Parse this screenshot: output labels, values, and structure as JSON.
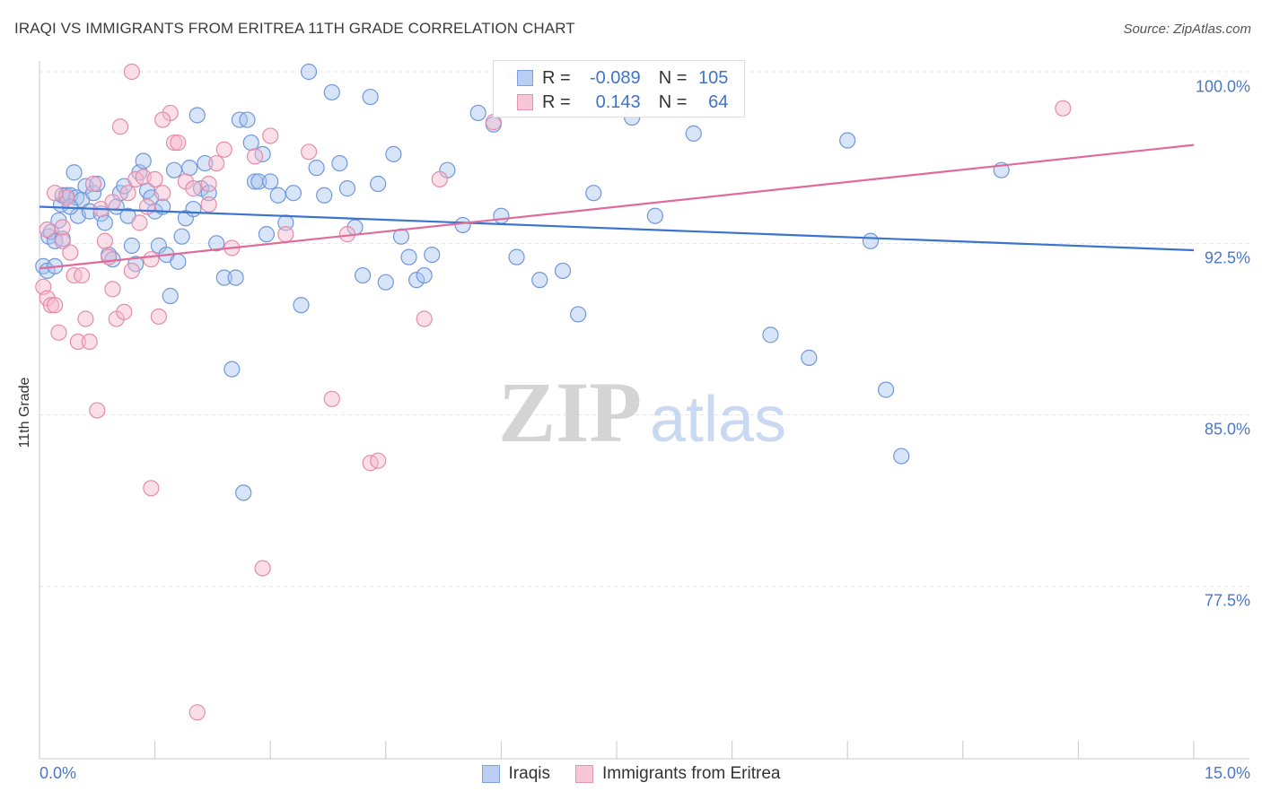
{
  "title": "IRAQI VS IMMIGRANTS FROM ERITREA 11TH GRADE CORRELATION CHART",
  "source": "Source: ZipAtlas.com",
  "watermark": {
    "zip": "ZIP",
    "atlas": "atlas"
  },
  "legend_top": {
    "r_label": "R =",
    "n_label": "N =",
    "rows": [
      {
        "series": "Iraqis",
        "r": "-0.089",
        "n": "105",
        "color": "#b9cef2"
      },
      {
        "series": "Immigrants from Eritrea",
        "r": "0.143",
        "n": "64",
        "color": "#f8c7d6"
      }
    ]
  },
  "colors": {
    "blue_line": "#3a74cf",
    "pink_line": "#e06b98",
    "blue_fill": "#a9c4ee",
    "pink_fill": "#f6b8cc",
    "tick_text": "#4a78c6"
  },
  "chart_data": {
    "type": "scatter",
    "title": "IRAQI VS IMMIGRANTS FROM ERITREA 11TH GRADE CORRELATION CHART",
    "xlabel": "",
    "ylabel": "11th Grade",
    "xlim": [
      0,
      15
    ],
    "ylim": [
      70.5,
      101.5
    ],
    "x_tick_labels": [
      "0.0%",
      "15.0%"
    ],
    "y_ticks": [
      77.5,
      85.0,
      92.5,
      100.0
    ],
    "y_tick_labels": [
      "77.5%",
      "85.0%",
      "92.5%",
      "100.0%"
    ],
    "grid": true,
    "legend": "bottom-center",
    "series": [
      {
        "name": "Iraqis",
        "trend": {
          "x": [
            0,
            15
          ],
          "y": [
            94.1,
            92.2
          ]
        },
        "points": [
          [
            0.05,
            91.5
          ],
          [
            0.1,
            91.3
          ],
          [
            0.12,
            92.8
          ],
          [
            0.15,
            93
          ],
          [
            0.2,
            92.6
          ],
          [
            0.25,
            93.5
          ],
          [
            0.28,
            94.2
          ],
          [
            0.3,
            94.6
          ],
          [
            0.35,
            94.6
          ],
          [
            0.4,
            94.6
          ],
          [
            0.45,
            95.6
          ],
          [
            0.48,
            94.5
          ],
          [
            0.5,
            93.7
          ],
          [
            0.55,
            94.4
          ],
          [
            0.6,
            95
          ],
          [
            0.65,
            93.9
          ],
          [
            0.7,
            94.7
          ],
          [
            0.75,
            95.1
          ],
          [
            0.8,
            93.8
          ],
          [
            0.85,
            93.4
          ],
          [
            0.9,
            92
          ],
          [
            0.95,
            91.8
          ],
          [
            1.0,
            94.1
          ],
          [
            1.05,
            94.7
          ],
          [
            1.1,
            95
          ],
          [
            1.15,
            93.7
          ],
          [
            1.2,
            92.4
          ],
          [
            1.25,
            91.6
          ],
          [
            1.3,
            95.6
          ],
          [
            1.35,
            96.1
          ],
          [
            1.4,
            94.8
          ],
          [
            1.45,
            94.5
          ],
          [
            1.5,
            93.9
          ],
          [
            1.55,
            92.4
          ],
          [
            1.6,
            94.1
          ],
          [
            1.65,
            92
          ],
          [
            1.7,
            90.2
          ],
          [
            1.75,
            95.7
          ],
          [
            1.8,
            91.7
          ],
          [
            1.85,
            92.8
          ],
          [
            1.9,
            93.6
          ],
          [
            1.95,
            95.8
          ],
          [
            2.0,
            94
          ],
          [
            2.05,
            98.1
          ],
          [
            2.1,
            94.9
          ],
          [
            2.15,
            96
          ],
          [
            2.2,
            94.7
          ],
          [
            2.3,
            92.5
          ],
          [
            2.4,
            91
          ],
          [
            2.5,
            87
          ],
          [
            2.55,
            91
          ],
          [
            2.6,
            97.9
          ],
          [
            2.65,
            81.6
          ],
          [
            2.7,
            97.9
          ],
          [
            2.75,
            96.9
          ],
          [
            2.8,
            95.2
          ],
          [
            2.85,
            95.2
          ],
          [
            2.9,
            96.4
          ],
          [
            2.95,
            92.9
          ],
          [
            3.0,
            95.2
          ],
          [
            3.1,
            94.6
          ],
          [
            3.2,
            93.4
          ],
          [
            3.3,
            94.7
          ],
          [
            3.4,
            89.8
          ],
          [
            3.5,
            100
          ],
          [
            3.6,
            95.8
          ],
          [
            3.7,
            94.6
          ],
          [
            3.8,
            99.1
          ],
          [
            3.9,
            96
          ],
          [
            4.0,
            94.9
          ],
          [
            4.1,
            93.2
          ],
          [
            4.2,
            91.1
          ],
          [
            4.3,
            98.9
          ],
          [
            4.4,
            95.1
          ],
          [
            4.5,
            90.8
          ],
          [
            4.6,
            96.4
          ],
          [
            4.7,
            92.8
          ],
          [
            4.8,
            91.9
          ],
          [
            4.9,
            90.9
          ],
          [
            5.0,
            91.1
          ],
          [
            5.1,
            92
          ],
          [
            5.3,
            95.7
          ],
          [
            5.5,
            93.3
          ],
          [
            5.7,
            98.2
          ],
          [
            5.9,
            97.7
          ],
          [
            6.0,
            93.7
          ],
          [
            6.2,
            91.9
          ],
          [
            6.5,
            90.9
          ],
          [
            6.8,
            91.3
          ],
          [
            7.0,
            89.4
          ],
          [
            7.2,
            94.7
          ],
          [
            7.5,
            99.5
          ],
          [
            7.7,
            98
          ],
          [
            8.0,
            93.7
          ],
          [
            8.5,
            97.3
          ],
          [
            9.5,
            88.5
          ],
          [
            10.0,
            87.5
          ],
          [
            10.5,
            97
          ],
          [
            10.8,
            92.6
          ],
          [
            11.0,
            86.1
          ],
          [
            11.2,
            83.2
          ],
          [
            12.5,
            95.7
          ],
          [
            0.2,
            91.5
          ],
          [
            0.3,
            92.7
          ],
          [
            0.4,
            94.1
          ]
        ]
      },
      {
        "name": "Immigrants from Eritrea",
        "trend": {
          "x": [
            0,
            15
          ],
          "y": [
            91.4,
            96.8
          ]
        },
        "points": [
          [
            0.05,
            90.6
          ],
          [
            0.1,
            90.1
          ],
          [
            0.15,
            89.8
          ],
          [
            0.2,
            89.8
          ],
          [
            0.25,
            88.6
          ],
          [
            0.3,
            92.6
          ],
          [
            0.35,
            94.5
          ],
          [
            0.4,
            92.1
          ],
          [
            0.45,
            91.1
          ],
          [
            0.5,
            88.2
          ],
          [
            0.55,
            91.1
          ],
          [
            0.6,
            89.2
          ],
          [
            0.65,
            88.2
          ],
          [
            0.7,
            95.1
          ],
          [
            0.75,
            85.2
          ],
          [
            0.8,
            94
          ],
          [
            0.85,
            92.6
          ],
          [
            0.9,
            91.9
          ],
          [
            0.95,
            94.3
          ],
          [
            1.0,
            89.2
          ],
          [
            1.05,
            97.6
          ],
          [
            1.1,
            89.5
          ],
          [
            1.15,
            94.7
          ],
          [
            1.2,
            91.3
          ],
          [
            1.25,
            95.3
          ],
          [
            1.3,
            93.4
          ],
          [
            1.35,
            95.4
          ],
          [
            1.4,
            94.1
          ],
          [
            1.45,
            81.8
          ],
          [
            1.5,
            95.3
          ],
          [
            1.55,
            89.3
          ],
          [
            1.6,
            94.7
          ],
          [
            1.7,
            98.2
          ],
          [
            1.75,
            96.9
          ],
          [
            1.8,
            96.9
          ],
          [
            1.9,
            95.2
          ],
          [
            2.0,
            94.9
          ],
          [
            2.05,
            72
          ],
          [
            2.2,
            94.2
          ],
          [
            2.3,
            96
          ],
          [
            2.4,
            96.6
          ],
          [
            2.5,
            92.3
          ],
          [
            2.8,
            96.3
          ],
          [
            2.9,
            78.3
          ],
          [
            3.0,
            97.2
          ],
          [
            3.2,
            92.9
          ],
          [
            3.5,
            96.5
          ],
          [
            3.8,
            85.7
          ],
          [
            4.0,
            92.9
          ],
          [
            4.3,
            82.9
          ],
          [
            4.4,
            83
          ],
          [
            5.0,
            89.2
          ],
          [
            5.2,
            95.3
          ],
          [
            5.9,
            97.8
          ],
          [
            6.2,
            100
          ],
          [
            13.3,
            98.4
          ],
          [
            0.1,
            93.1
          ],
          [
            0.2,
            94.7
          ],
          [
            0.3,
            93.2
          ],
          [
            1.2,
            100
          ],
          [
            1.6,
            97.9
          ],
          [
            2.2,
            95.1
          ],
          [
            0.95,
            90.5
          ],
          [
            1.45,
            91.8
          ]
        ]
      }
    ]
  }
}
